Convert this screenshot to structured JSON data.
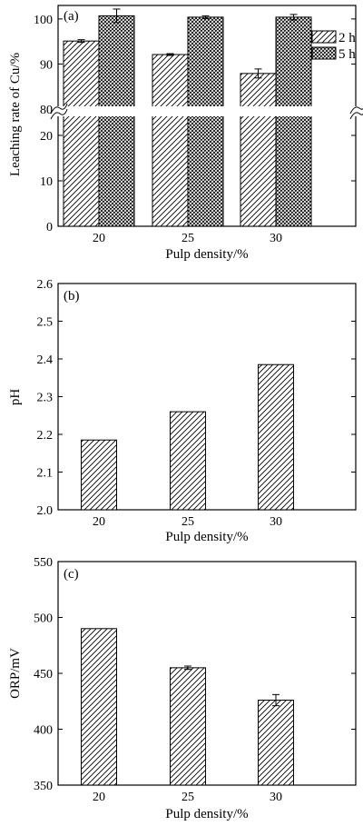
{
  "chart_data": [
    {
      "panel": "(a)",
      "type": "bar",
      "categories": [
        "20",
        "25",
        "30"
      ],
      "xlabel": "Pulp density/%",
      "ylabel": "Leaching rate of Cu/%",
      "axis_break": [
        25,
        80
      ],
      "ylim_lower": [
        0,
        25
      ],
      "ylim_upper": [
        80,
        103
      ],
      "yticks": [
        "0",
        "10",
        "20",
        "80",
        "90",
        "100"
      ],
      "legend_position": "top-right",
      "series": [
        {
          "name": "2 h",
          "pattern": "diagonal-hatch",
          "values": [
            95.1,
            92.1,
            87.9
          ],
          "errors": [
            0.3,
            0.2,
            1.0
          ]
        },
        {
          "name": "5 h",
          "pattern": "crosshatch",
          "values": [
            100.7,
            100.4,
            100.4
          ],
          "errors": [
            1.5,
            0.3,
            0.6
          ]
        }
      ]
    },
    {
      "panel": "(b)",
      "type": "bar",
      "categories": [
        "20",
        "25",
        "30"
      ],
      "xlabel": "Pulp density/%",
      "ylabel": "pH",
      "ylim": [
        2.0,
        2.6
      ],
      "yticks": [
        "2.0",
        "2.1",
        "2.2",
        "2.3",
        "2.4",
        "2.5",
        "2.6"
      ],
      "series": [
        {
          "pattern": "diagonal-hatch",
          "values": [
            2.185,
            2.26,
            2.385
          ]
        }
      ]
    },
    {
      "panel": "(c)",
      "type": "bar",
      "categories": [
        "20",
        "25",
        "30"
      ],
      "xlabel": "Pulp density/%",
      "ylabel": "ORP/mV",
      "ylim": [
        350,
        550
      ],
      "yticks": [
        "350",
        "400",
        "450",
        "500",
        "550"
      ],
      "series": [
        {
          "pattern": "diagonal-hatch",
          "values": [
            490,
            455,
            426
          ],
          "errors": [
            0,
            1.5,
            5
          ]
        }
      ]
    }
  ]
}
